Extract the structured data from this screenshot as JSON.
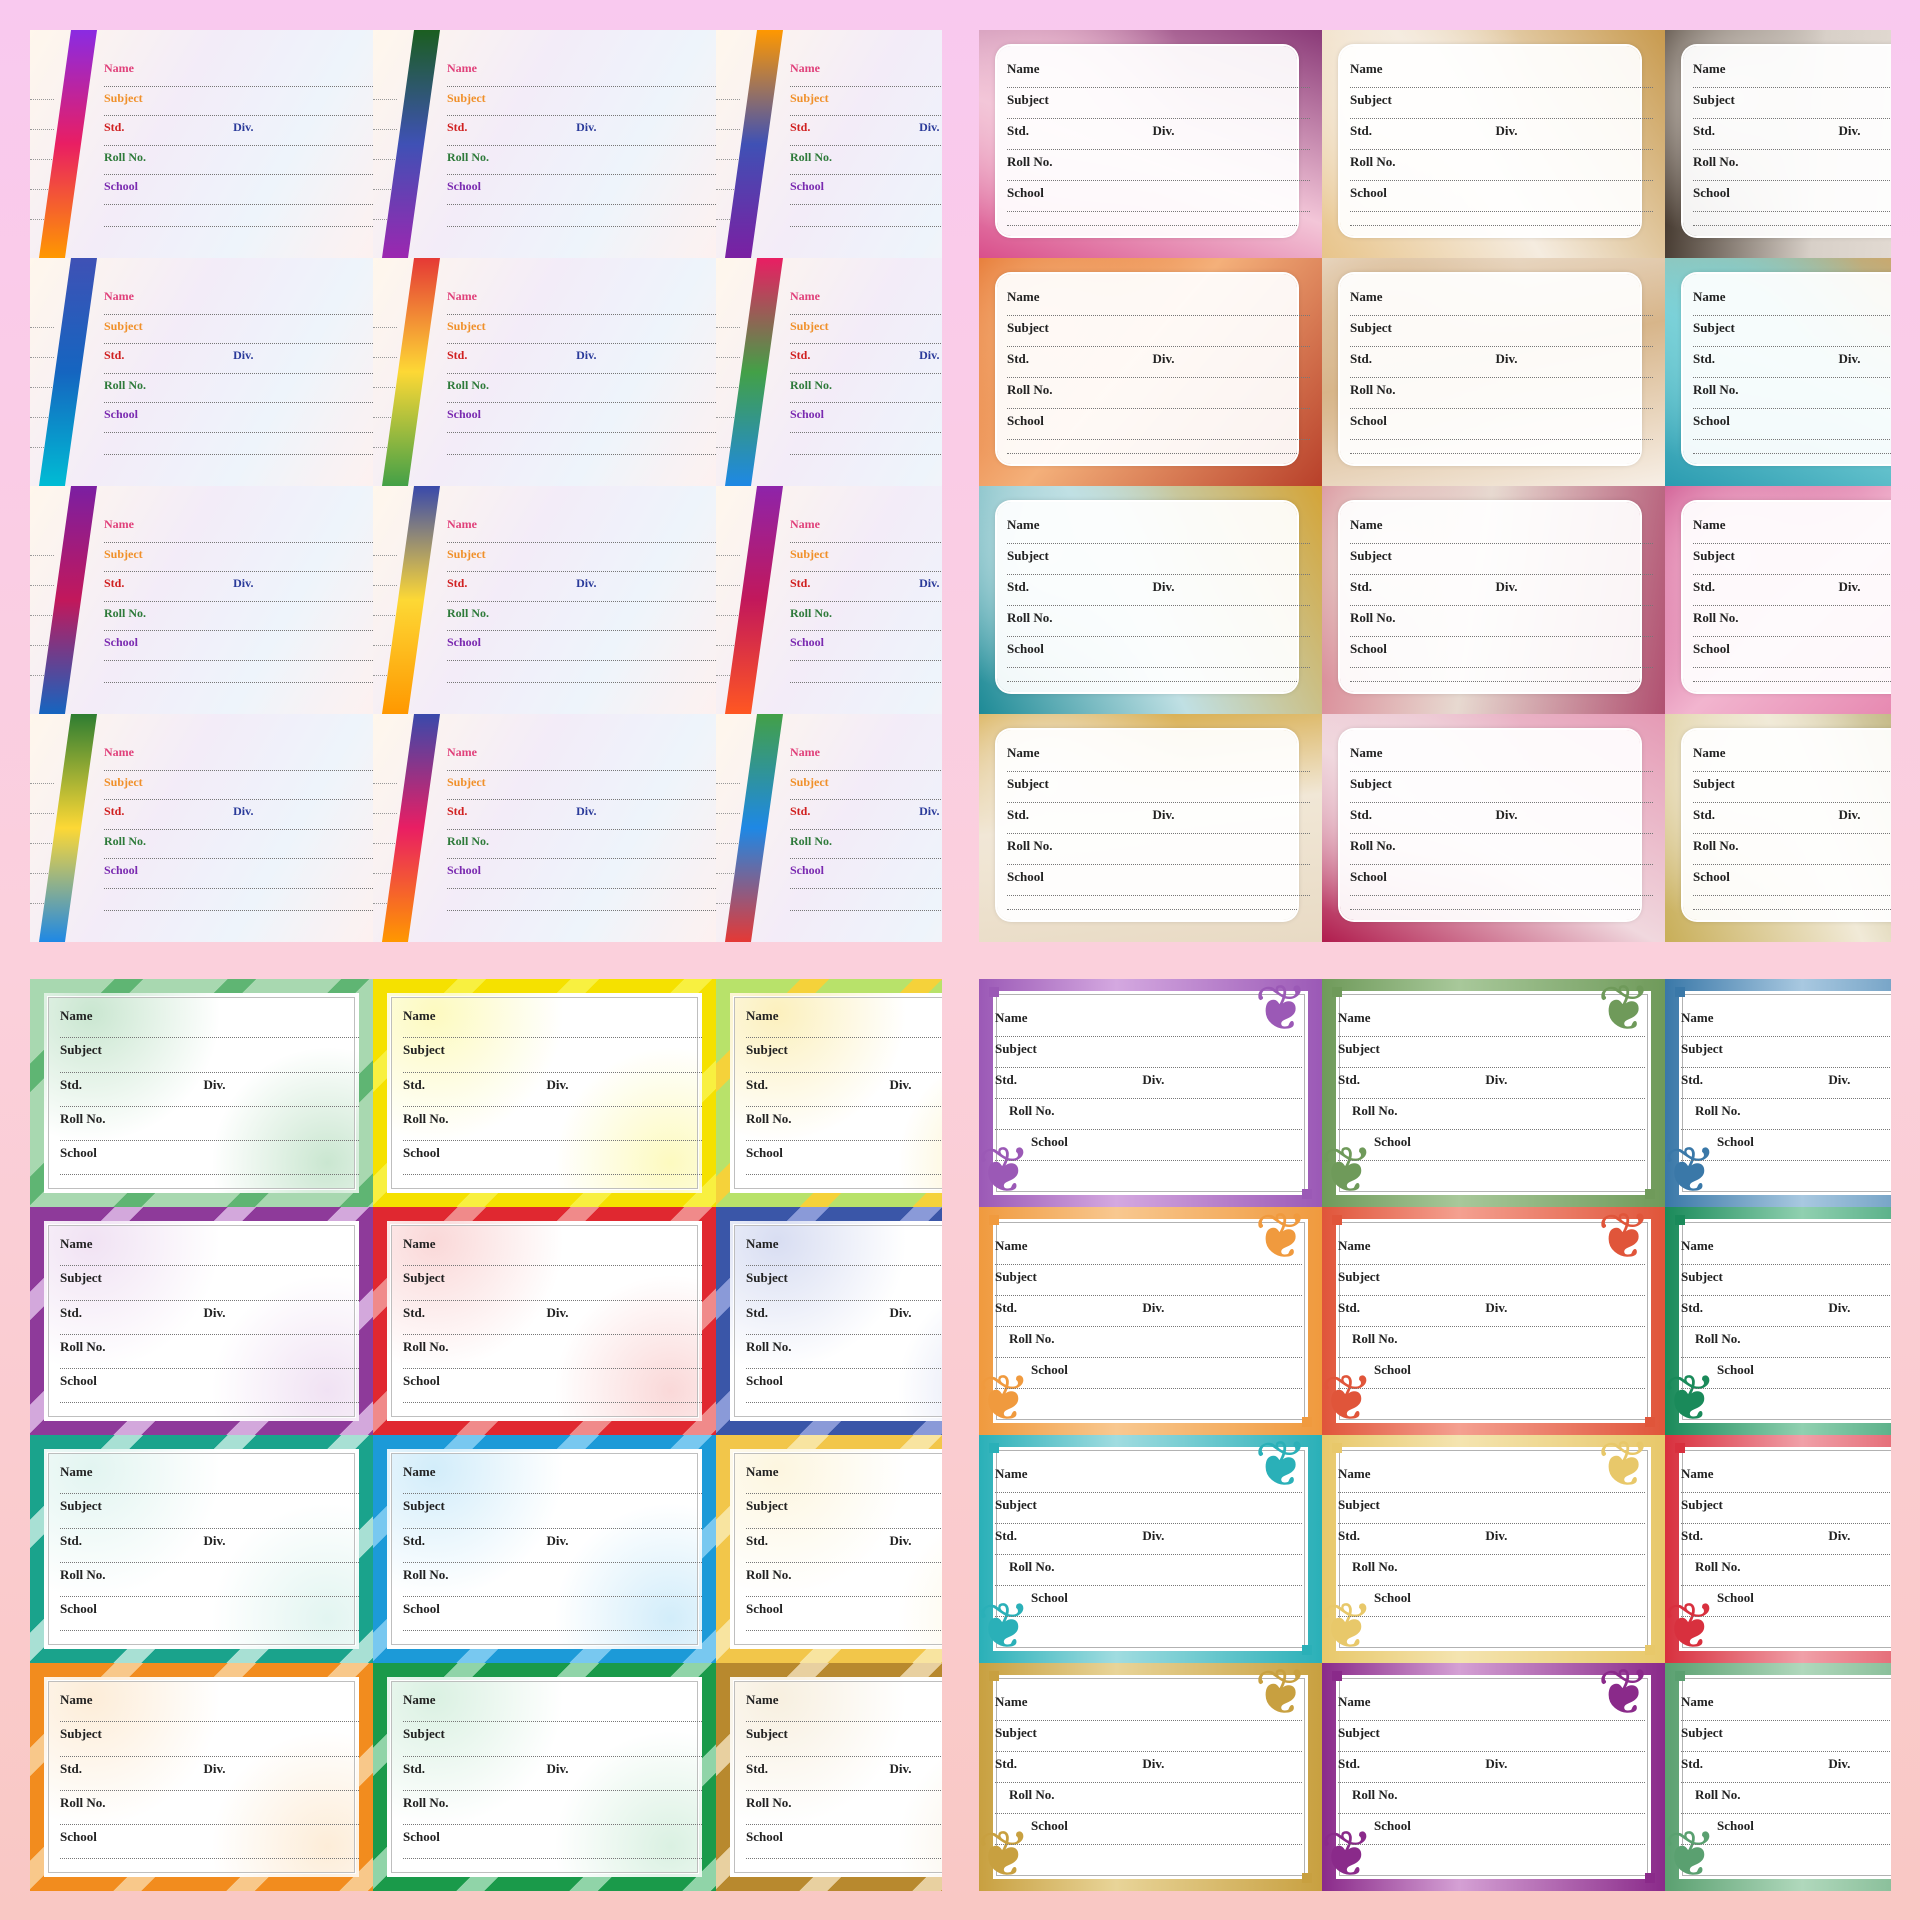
{
  "labels": {
    "name": "Name",
    "subject": "Subject",
    "std": "Std.",
    "div": "Div.",
    "roll": "Roll No.",
    "school": "School"
  },
  "panels": [
    {
      "style": "rainbow-stripe",
      "label_colors": {
        "name": "#e0407a",
        "subject": "#f0902a",
        "std": "#d02020",
        "div": "#2a3a9a",
        "roll": "#2e7a3a",
        "school": "#7a2ab0"
      },
      "stripe_gradients": [
        [
          "#8a2be2",
          "#e91e63",
          "#ff9800"
        ],
        [
          "#1b5e20",
          "#3f51b5",
          "#9c27b0"
        ],
        [
          "#ff9800",
          "#3f51b5",
          "#7b1fa2"
        ],
        [
          "#3f51b5",
          "#1565c0",
          "#00bcd4"
        ],
        [
          "#e53935",
          "#fdd835",
          "#43a047"
        ],
        [
          "#e91e63",
          "#43a047",
          "#1e88e5"
        ],
        [
          "#7b1fa2",
          "#c2185b",
          "#1565c0"
        ],
        [
          "#3949ab",
          "#fdd835",
          "#ff9800"
        ],
        [
          "#8e24aa",
          "#c2185b",
          "#ff5722"
        ],
        [
          "#2e7d32",
          "#fdd835",
          "#1e88e5"
        ],
        [
          "#3949ab",
          "#e91e63",
          "#ff9800"
        ],
        [
          "#43a047",
          "#1e88e5",
          "#e53935"
        ]
      ]
    },
    {
      "style": "marble",
      "backgrounds": [
        [
          "#d94f8b",
          "#f3c6d8",
          "#8a3a78"
        ],
        [
          "#e8c48a",
          "#f5ece0",
          "#c89a4e"
        ],
        [
          "#3a2e24",
          "#d8d0c8",
          "#f0e8e0"
        ],
        [
          "#e2681f",
          "#f4b07a",
          "#b8402a"
        ],
        [
          "#efe4d8",
          "#d7b58a",
          "#f7efe6"
        ],
        [
          "#2a9bb0",
          "#7bd1d8",
          "#e49a4a"
        ],
        [
          "#1d8a96",
          "#c0e0e4",
          "#d4a437"
        ],
        [
          "#d88090",
          "#e7d9d0",
          "#b05070"
        ],
        [
          "#c44080",
          "#f2b5cf",
          "#e070a0"
        ],
        [
          "#d4a437",
          "#f1e7d6",
          "#e8dac4"
        ],
        [
          "#b01c4d",
          "#f0d8de",
          "#e59ab5"
        ],
        [
          "#c8ae58",
          "#f1ead8",
          "#9c8e3e"
        ]
      ]
    },
    {
      "style": "colored-frame",
      "frames": [
        [
          "#a8d8b0",
          "#5fb573"
        ],
        [
          "#f5e100",
          "#f8f040"
        ],
        [
          "#b8e26a",
          "#f5d23a"
        ],
        [
          "#8e3a9a",
          "#d3a8dc"
        ],
        [
          "#e02830",
          "#f08a8a"
        ],
        [
          "#3a56a8",
          "#8a9ad8"
        ],
        [
          "#1aa38c",
          "#a8e0d4"
        ],
        [
          "#1c9ad8",
          "#78c8f0"
        ],
        [
          "#f2c64a",
          "#f8e4a0"
        ],
        [
          "#f28c1e",
          "#f8c88a"
        ],
        [
          "#1a9a4a",
          "#90d4a8"
        ],
        [
          "#b8892e",
          "#e8d0a0"
        ]
      ]
    },
    {
      "style": "floral",
      "frames": [
        [
          "#9b59b6",
          "#d4a8e0"
        ],
        [
          "#6f9a5a",
          "#a8c89a"
        ],
        [
          "#3a78a8",
          "#a8c8e0"
        ],
        [
          "#f09a3e",
          "#f8c890"
        ],
        [
          "#e0553a",
          "#f4a090"
        ],
        [
          "#1a8a5a",
          "#90d0b0"
        ],
        [
          "#2ab0b8",
          "#a0dce0"
        ],
        [
          "#e8c86a",
          "#f4e4b0"
        ],
        [
          "#d8303e",
          "#f0a0a8"
        ],
        [
          "#c8a040",
          "#e8d498"
        ],
        [
          "#8a2a8a",
          "#d4a0d4"
        ],
        [
          "#5aa070",
          "#b0d8bc"
        ]
      ]
    }
  ]
}
